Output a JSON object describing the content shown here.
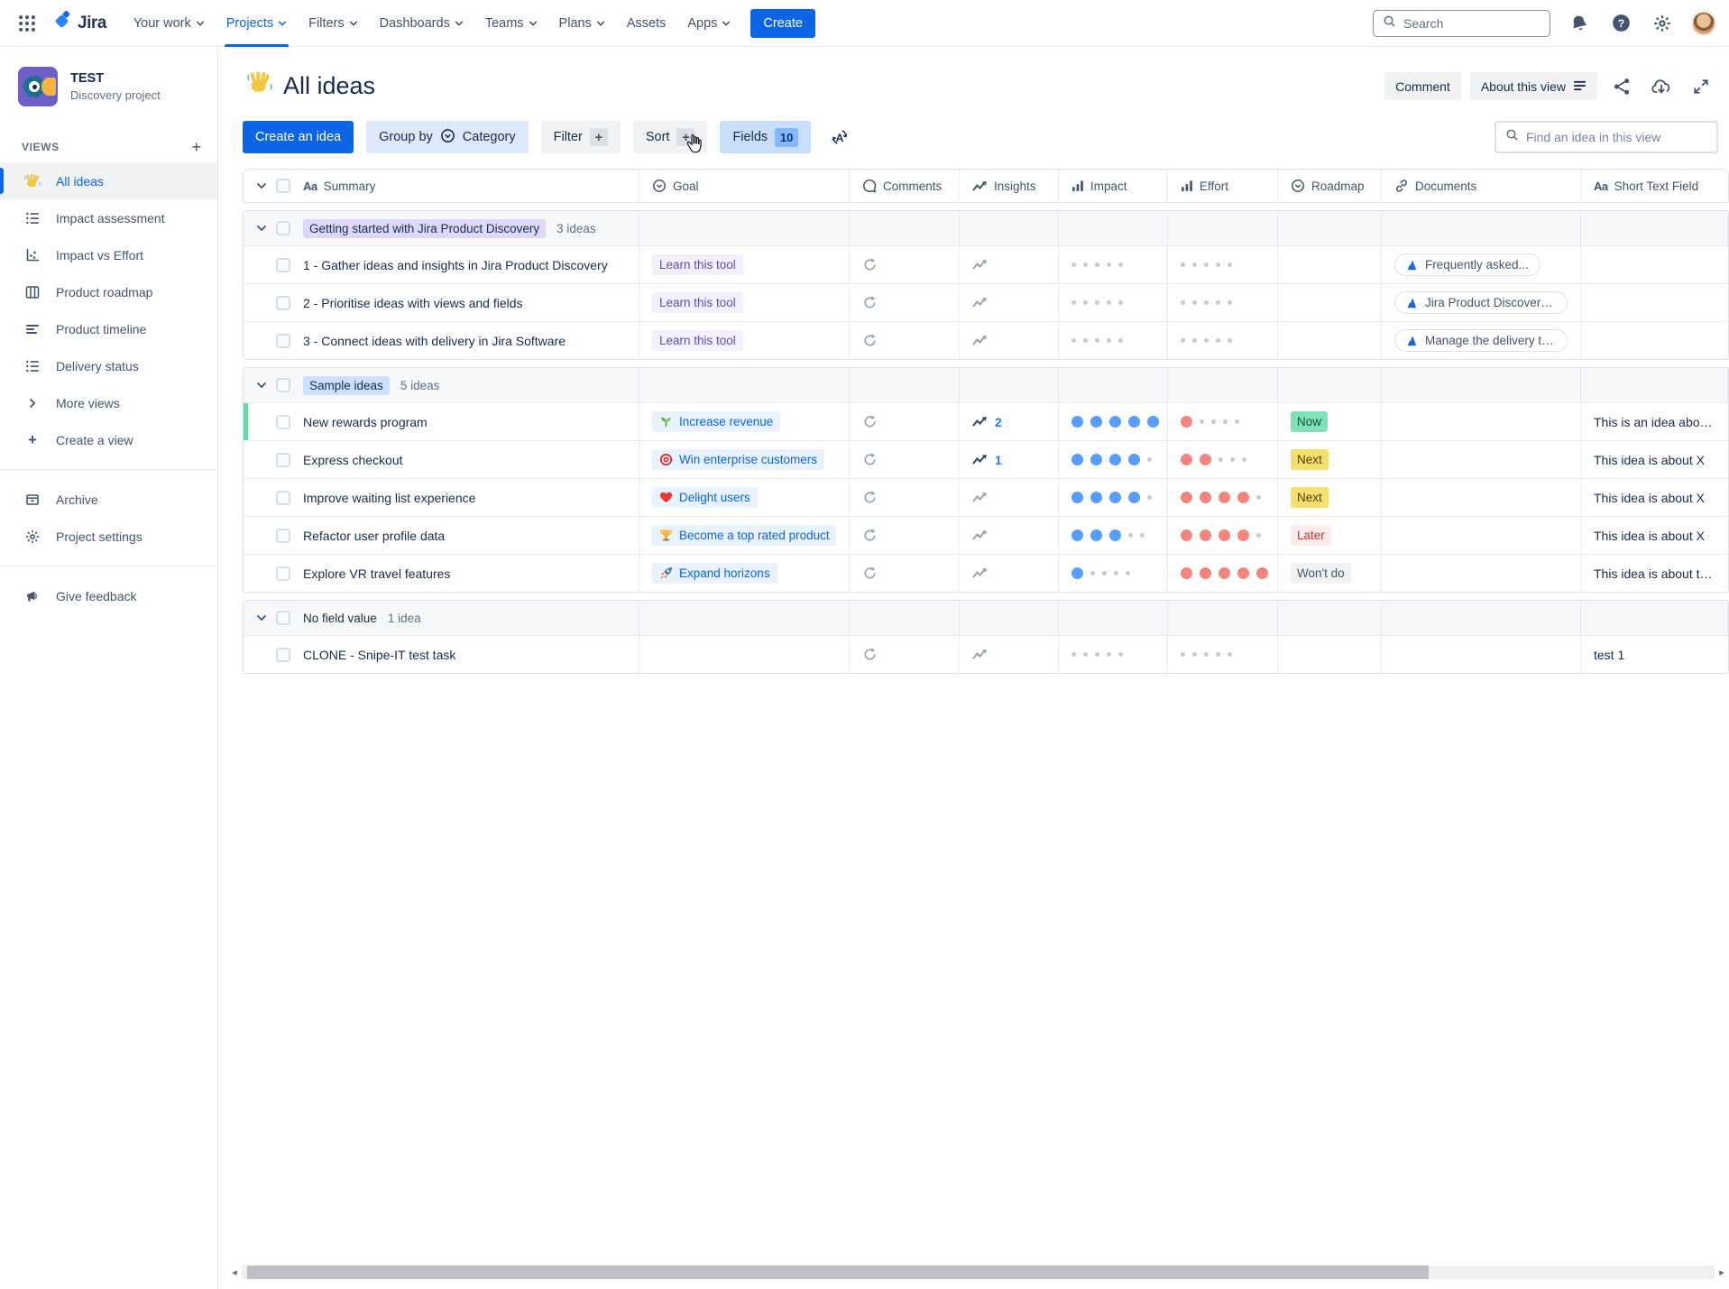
{
  "topnav": {
    "logo": "Jira",
    "items": [
      {
        "label": "Your work",
        "chevron": true,
        "active": false
      },
      {
        "label": "Projects",
        "chevron": true,
        "active": true
      },
      {
        "label": "Filters",
        "chevron": true,
        "active": false
      },
      {
        "label": "Dashboards",
        "chevron": true,
        "active": false
      },
      {
        "label": "Teams",
        "chevron": true,
        "active": false
      },
      {
        "label": "Plans",
        "chevron": true,
        "active": false
      },
      {
        "label": "Assets",
        "chevron": false,
        "active": false
      },
      {
        "label": "Apps",
        "chevron": true,
        "active": false
      }
    ],
    "create_label": "Create",
    "search_placeholder": "Search"
  },
  "sidebar": {
    "project": {
      "name": "TEST",
      "type": "Discovery project"
    },
    "views_label": "VIEWS",
    "items": [
      {
        "label": "All ideas",
        "icon": "wave-icon",
        "active": true
      },
      {
        "label": "Impact assessment",
        "icon": "list-icon",
        "active": false
      },
      {
        "label": "Impact vs Effort",
        "icon": "scatter-icon",
        "active": false
      },
      {
        "label": "Product roadmap",
        "icon": "board-icon",
        "active": false
      },
      {
        "label": "Product timeline",
        "icon": "timeline-icon",
        "active": false
      },
      {
        "label": "Delivery status",
        "icon": "list-icon",
        "active": false
      },
      {
        "label": "More views",
        "icon": "chevron-right-icon",
        "active": false
      },
      {
        "label": "Create a view",
        "icon": "plus-icon",
        "active": false
      }
    ],
    "footer_items": [
      {
        "label": "Archive",
        "icon": "archive-icon"
      },
      {
        "label": "Project settings",
        "icon": "gear-icon"
      }
    ],
    "feedback": {
      "label": "Give feedback",
      "icon": "megaphone-icon"
    }
  },
  "header": {
    "title": "All ideas",
    "comment_label": "Comment",
    "about_label": "About this view"
  },
  "toolbar": {
    "create_label": "Create an idea",
    "group_by_label": "Group by",
    "group_by_value": "Category",
    "filter_label": "Filter",
    "sort_label": "Sort",
    "fields_label": "Fields",
    "fields_count": "10",
    "find_placeholder": "Find an idea in this view"
  },
  "table": {
    "columns": [
      {
        "label": "Summary",
        "icon": "text-field-icon"
      },
      {
        "label": "Goal",
        "icon": "circle-chevron-icon"
      },
      {
        "label": "Comments",
        "icon": "comment-icon"
      },
      {
        "label": "Insights",
        "icon": "trend-icon"
      },
      {
        "label": "Impact",
        "icon": "bars-icon"
      },
      {
        "label": "Effort",
        "icon": "bars-icon"
      },
      {
        "label": "Roadmap",
        "icon": "circle-chevron-icon"
      },
      {
        "label": "Documents",
        "icon": "link-icon"
      },
      {
        "label": "Short Text Field",
        "icon": "text-field-icon"
      }
    ],
    "colors": {
      "impact_dot": "#579DFF",
      "effort_dot": "#F2867E",
      "empty_dot": "#C6CAD2",
      "accent_green": "#63D9A7"
    },
    "groups": [
      {
        "label": "Getting started with Jira Product Discovery",
        "badge_bg": "#DFD8FD",
        "count": "3 ideas",
        "rows": [
          {
            "summary": "1 - Gather ideas and insights in Jira Product Discovery",
            "goal": {
              "label": "Learn this tool",
              "style": "purple",
              "icon": null
            },
            "insights": null,
            "impact": 0,
            "effort": 0,
            "roadmap": null,
            "document": "Frequently asked...",
            "short_text": "",
            "accent": false
          },
          {
            "summary": "2 - Prioritise ideas with views and fields",
            "goal": {
              "label": "Learn this tool",
              "style": "purple",
              "icon": null
            },
            "insights": null,
            "impact": 0,
            "effort": 0,
            "roadmap": null,
            "document": "Jira Product Discovery...",
            "short_text": "",
            "accent": false
          },
          {
            "summary": "3 - Connect ideas with delivery in Jira Software",
            "goal": {
              "label": "Learn this tool",
              "style": "purple",
              "icon": null
            },
            "insights": null,
            "impact": 0,
            "effort": 0,
            "roadmap": null,
            "document": "Manage the delivery tab...",
            "short_text": "",
            "accent": false
          }
        ]
      },
      {
        "label": "Sample ideas",
        "badge_bg": "#CCE0FF",
        "count": "5 ideas",
        "rows": [
          {
            "summary": "New rewards program",
            "goal": {
              "label": "Increase revenue",
              "style": "blue",
              "icon": "seedling-icon"
            },
            "insights": "2",
            "impact": 5,
            "effort": 1,
            "roadmap": {
              "label": "Now",
              "bg": "#7EE2B8",
              "fg": "#164B35"
            },
            "document": null,
            "short_text": "This is an idea about X",
            "accent": true
          },
          {
            "summary": "Express checkout",
            "goal": {
              "label": "Win enterprise customers",
              "style": "blue",
              "icon": "target-icon"
            },
            "insights": "1",
            "impact": 4,
            "effort": 2,
            "roadmap": {
              "label": "Next",
              "bg": "#F5DF6E",
              "fg": "#533F04"
            },
            "document": null,
            "short_text": "This idea is about X",
            "accent": false
          },
          {
            "summary": "Improve waiting list experience",
            "goal": {
              "label": "Delight users",
              "style": "blue",
              "icon": "heart-icon"
            },
            "insights": null,
            "impact": 4,
            "effort": 4,
            "roadmap": {
              "label": "Next",
              "bg": "#F5DF6E",
              "fg": "#533F04"
            },
            "document": null,
            "short_text": "This idea is about X",
            "accent": false
          },
          {
            "summary": "Refactor user profile data",
            "goal": {
              "label": "Become a top rated product",
              "style": "blue",
              "icon": "trophy-icon"
            },
            "insights": null,
            "impact": 3,
            "effort": 4,
            "roadmap": {
              "label": "Later",
              "bg": "#FFECEB",
              "fg": "#C9372C"
            },
            "document": null,
            "short_text": "This idea is about X",
            "accent": false
          },
          {
            "summary": "Explore VR travel features",
            "goal": {
              "label": "Expand horizons",
              "style": "blue",
              "icon": "rocket-icon"
            },
            "insights": null,
            "impact": 1,
            "effort": 5,
            "roadmap": {
              "label": "Won't do",
              "bg": "#F1F2F4",
              "fg": "#44546F"
            },
            "document": null,
            "short_text": "This idea is about this",
            "accent": false
          }
        ]
      },
      {
        "label": "No field value",
        "badge_bg": null,
        "count": "1 idea",
        "rows": [
          {
            "summary": "CLONE - Snipe-IT test task",
            "goal": null,
            "insights": null,
            "impact": 0,
            "effort": 0,
            "roadmap": null,
            "document": null,
            "short_text": "test 1",
            "accent": false
          }
        ]
      }
    ]
  }
}
